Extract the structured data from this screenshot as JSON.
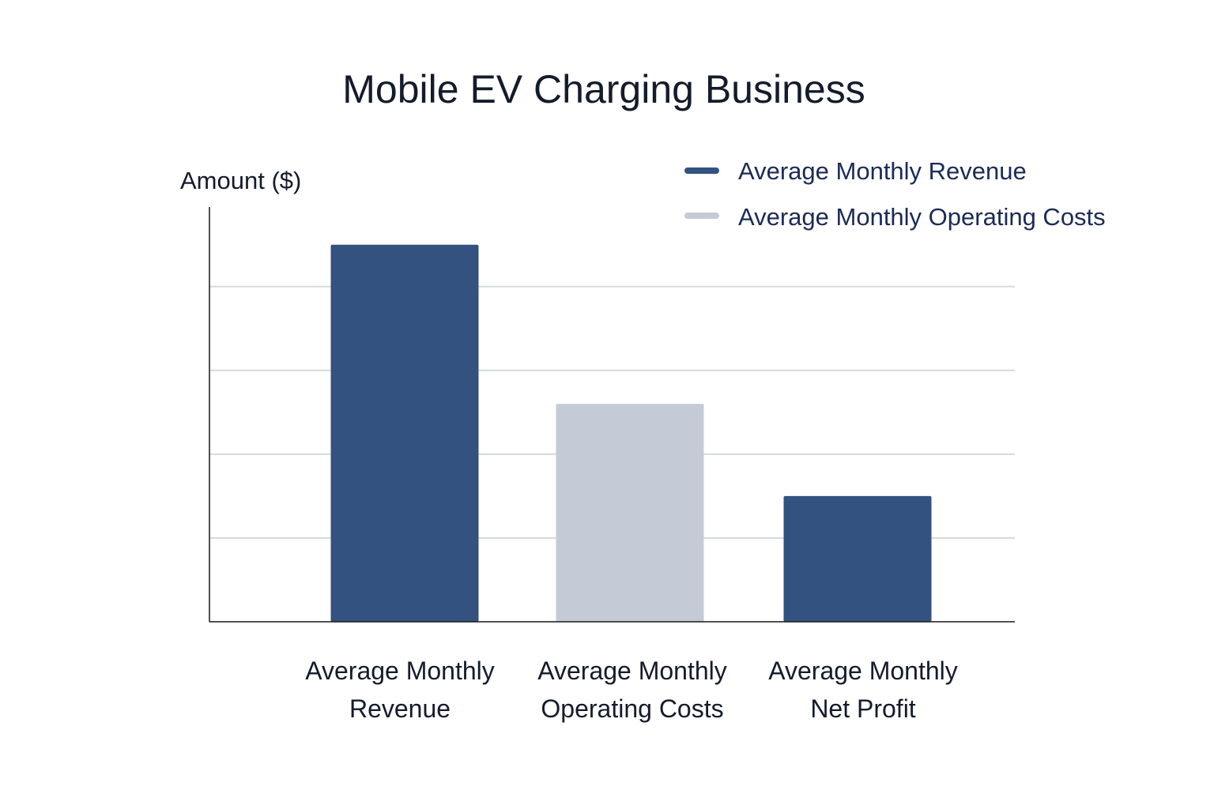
{
  "chart_data": {
    "type": "bar",
    "title": "Mobile EV Charging Business",
    "xlabel": "",
    "ylabel": "Amount ($)",
    "ylim": [
      0,
      4.95
    ],
    "grid": true,
    "y_tick_labels_shown": false,
    "legend_placement": "top-right",
    "categories": [
      [
        "Average Monthly",
        "Revenue"
      ],
      [
        "Average Monthly",
        "Operating Costs"
      ],
      [
        "Average Monthly",
        "Net Profit"
      ]
    ],
    "values": [
      4.5,
      2.6,
      1.5
    ],
    "bar_colors": [
      "#33527f",
      "#c5cbd6",
      "#33527f"
    ],
    "legend": [
      {
        "label": "Average Monthly Revenue",
        "color": "#33527f"
      },
      {
        "label": "Average Monthly Operating Costs",
        "color": "#c5cbd6"
      }
    ],
    "gridlines": [
      1,
      2,
      3,
      4
    ]
  }
}
